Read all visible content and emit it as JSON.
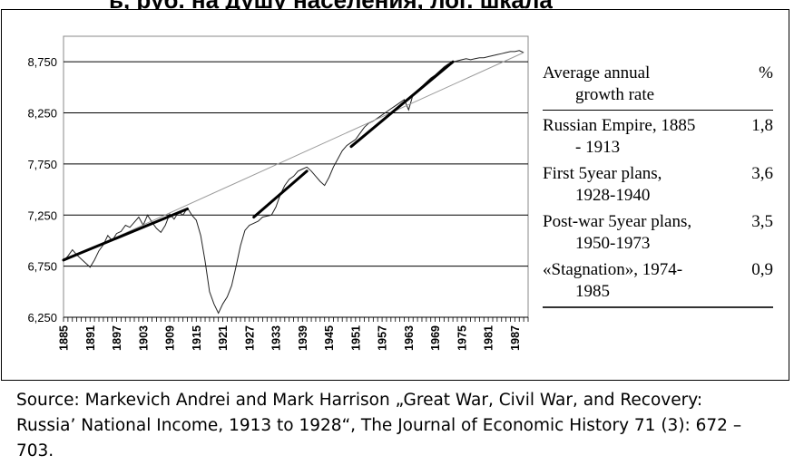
{
  "title_fragment": "ь, руб. на душу населения, лог. шкала",
  "chart_data": {
    "type": "line",
    "x_range": [
      1885,
      1990
    ],
    "ylim": [
      6250,
      9000
    ],
    "y_ticks": [
      {
        "value": 6250,
        "label": "6,250"
      },
      {
        "value": 6750,
        "label": "6,750"
      },
      {
        "value": 7250,
        "label": "7,250"
      },
      {
        "value": 7750,
        "label": "7,750"
      },
      {
        "value": 8250,
        "label": "8,250"
      },
      {
        "value": 8750,
        "label": "8,750"
      }
    ],
    "x_tick_labels": [
      "1885",
      "1891",
      "1897",
      "1903",
      "1909",
      "1915",
      "1921",
      "1927",
      "1933",
      "1939",
      "1945",
      "1951",
      "1957",
      "1963",
      "1969",
      "1975",
      "1981",
      "1987"
    ],
    "series": [
      {
        "role": "actual",
        "x": [
          1885,
          1886,
          1887,
          1888,
          1889,
          1890,
          1891,
          1892,
          1893,
          1894,
          1895,
          1896,
          1897,
          1898,
          1899,
          1900,
          1901,
          1902,
          1903,
          1904,
          1905,
          1906,
          1907,
          1908,
          1909,
          1910,
          1911,
          1912,
          1913,
          1914,
          1915,
          1916,
          1917,
          1918,
          1919,
          1920,
          1921,
          1922,
          1923,
          1924,
          1925,
          1926,
          1927,
          1928,
          1929,
          1930,
          1931,
          1932,
          1933,
          1934,
          1935,
          1936,
          1937,
          1938,
          1939,
          1940,
          1941,
          1942,
          1943,
          1944,
          1945,
          1946,
          1947,
          1948,
          1949,
          1950,
          1951,
          1952,
          1953,
          1954,
          1955,
          1956,
          1957,
          1958,
          1959,
          1960,
          1961,
          1962,
          1963,
          1964,
          1965,
          1966,
          1967,
          1968,
          1969,
          1970,
          1971,
          1972,
          1973,
          1974,
          1975,
          1976,
          1977,
          1978,
          1979,
          1980,
          1981,
          1982,
          1983,
          1984,
          1985,
          1986,
          1987,
          1988,
          1989
        ],
        "y": [
          6800,
          6850,
          6910,
          6860,
          6820,
          6780,
          6740,
          6810,
          6900,
          6960,
          7050,
          7000,
          7070,
          7090,
          7150,
          7130,
          7180,
          7230,
          7150,
          7250,
          7180,
          7120,
          7080,
          7150,
          7260,
          7210,
          7280,
          7250,
          7320,
          7250,
          7200,
          7050,
          6800,
          6500,
          6380,
          6290,
          6380,
          6450,
          6560,
          6750,
          6950,
          7100,
          7150,
          7170,
          7190,
          7230,
          7240,
          7250,
          7330,
          7450,
          7540,
          7600,
          7630,
          7680,
          7700,
          7720,
          7680,
          7630,
          7580,
          7540,
          7620,
          7720,
          7800,
          7880,
          7930,
          7960,
          7990,
          8050,
          8110,
          8150,
          8170,
          8200,
          8230,
          8260,
          8290,
          8320,
          8350,
          8380,
          8280,
          8430,
          8470,
          8510,
          8550,
          8590,
          8620,
          8660,
          8700,
          8730,
          8750,
          8760,
          8770,
          8780,
          8770,
          8780,
          8790,
          8790,
          8800,
          8810,
          8820,
          8830,
          8840,
          8850,
          8850,
          8860,
          8840
        ]
      },
      {
        "role": "long-run trend",
        "x": [
          1885,
          1989
        ],
        "y": [
          6800,
          8840
        ]
      },
      {
        "role": "period trend",
        "segments": [
          {
            "x": [
              1885,
              1913
            ],
            "y": [
              6810,
              7310
            ]
          },
          {
            "x": [
              1928,
              1940
            ],
            "y": [
              7230,
              7680
            ]
          },
          {
            "x": [
              1950,
              1973
            ],
            "y": [
              7920,
              8750
            ]
          }
        ]
      }
    ]
  },
  "table": {
    "header": {
      "line1": "Average annual",
      "line2": "growth rate",
      "unit": "%"
    },
    "rows": [
      {
        "line1": "Russian Empire, 1885",
        "line2": "- 1913",
        "value": "1,8"
      },
      {
        "line1": "First 5year plans,",
        "line2": "1928-1940",
        "value": "3,6"
      },
      {
        "line1": "Post-war 5year plans,",
        "line2": "1950-1973",
        "value": "3,5"
      },
      {
        "line1": "«Stagnation», 1974-",
        "line2": "1985",
        "value": "0,9"
      }
    ]
  },
  "source": {
    "line1": "Source: Markevich Andrei and Mark Harrison „Great War, Civil War, and Recovery:",
    "line2": "Russia’ National Income, 1913 to 1928“, The Journal of Economic History 71 (3): 672 –",
    "line3": "703."
  }
}
